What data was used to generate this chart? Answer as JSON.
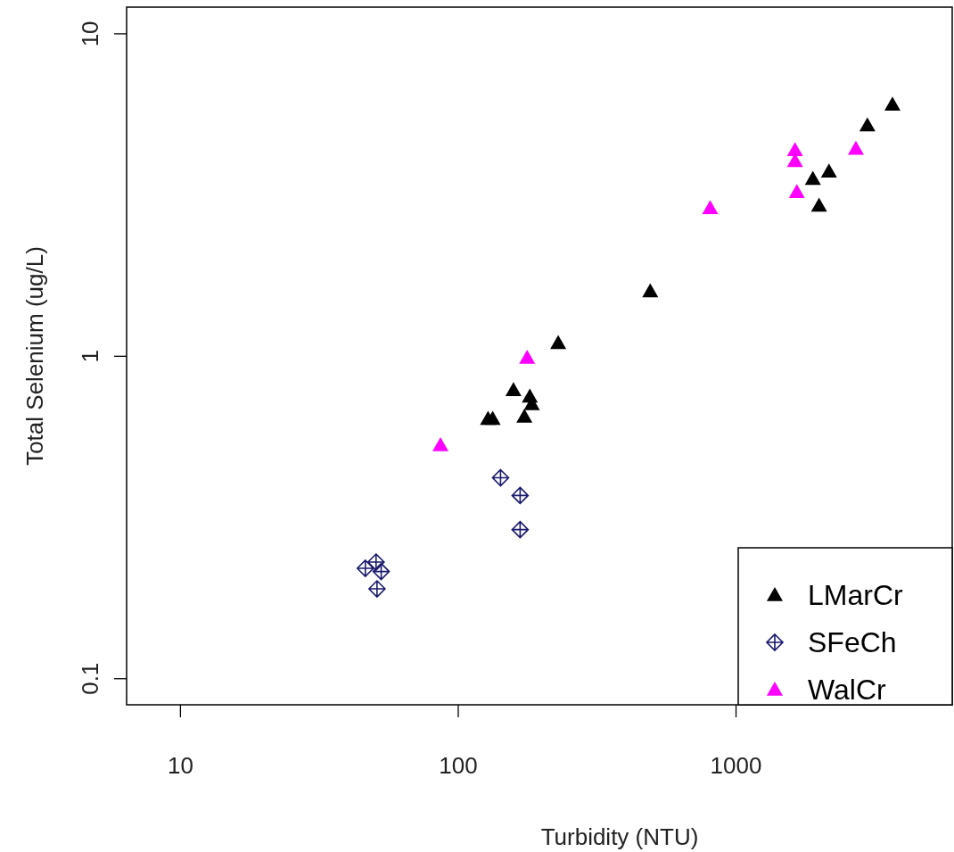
{
  "chart_data": {
    "type": "scatter",
    "xlabel": "Turbidity (NTU)",
    "ylabel": "Total Selenium (ug/L)",
    "log": "xy",
    "xlim": [
      6.4,
      6000
    ],
    "ylim": [
      0.083,
      12.1
    ],
    "xticks": [
      10,
      100,
      1000
    ],
    "yticks": [
      0.1,
      1,
      10
    ],
    "legend": "bottom right",
    "grid": false,
    "series": [
      {
        "name": "LMarCr",
        "color": "#000000",
        "marker": "triangle",
        "x": [
          3656,
          2970,
          2160,
          1890,
          1990,
          491,
          229,
          158,
          181,
          184,
          173,
          128,
          133
        ],
        "values": [
          6.03,
          5.2,
          3.74,
          3.55,
          2.93,
          1.59,
          1.1,
          0.785,
          0.75,
          0.71,
          0.65,
          0.64,
          0.64
        ]
      },
      {
        "name": "SFeCh",
        "color": "#1a1a6e",
        "marker": "cross",
        "x": [
          142,
          167,
          167,
          46.3,
          50.6,
          52.8,
          51
        ],
        "values": [
          0.42,
          0.37,
          0.29,
          0.22,
          0.23,
          0.215,
          0.19
        ]
      },
      {
        "name": "WalCr",
        "color": "#ff00ff",
        "marker": "triangle",
        "x": [
          2700,
          1630,
          1630,
          1655,
          807,
          177,
          86.3
        ],
        "values": [
          4.4,
          4.36,
          4.03,
          3.23,
          2.88,
          0.99,
          0.53
        ]
      }
    ]
  }
}
